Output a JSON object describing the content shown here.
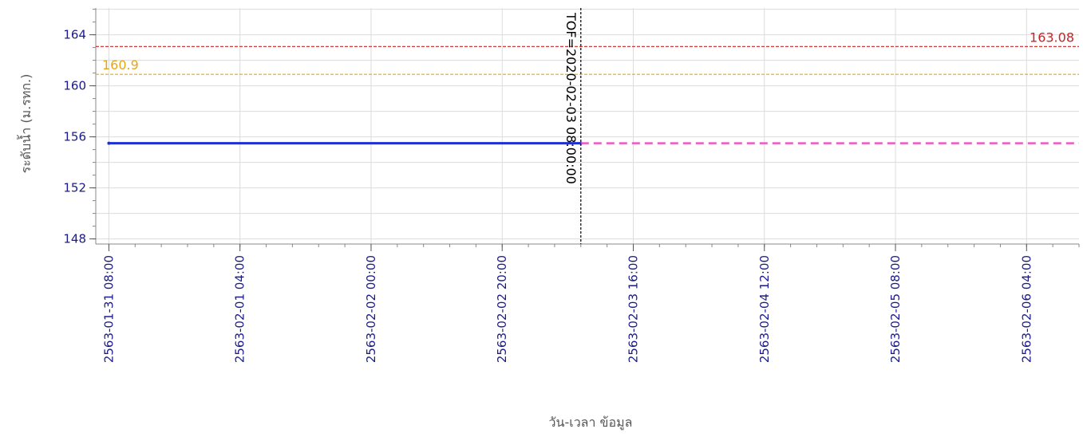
{
  "chart_data": {
    "type": "line",
    "ylabel": "ระดับน้ำ (ม.รทก.)",
    "xlabel": "วัน-เวลา ข้อมูล",
    "ylim": [
      147.6,
      166.1
    ],
    "y_ticks": [
      148,
      152,
      156,
      160,
      164
    ],
    "x_start": "2563-01-31 06:00",
    "x_end": "2563-02-06 12:00",
    "x_ticks": [
      "2563-01-31 08:00",
      "2563-02-01 04:00",
      "2563-02-02 00:00",
      "2563-02-02 20:00",
      "2563-02-03 16:00",
      "2563-02-04 12:00",
      "2563-02-05 08:00",
      "2563-02-06 04:00"
    ],
    "grid": true,
    "reference_lines": [
      {
        "value": 163.08,
        "label": "163.08",
        "color": "#cc2222",
        "label_position": "right"
      },
      {
        "value": 160.9,
        "label": "160.9",
        "color": "#e6a619",
        "label_position": "left"
      }
    ],
    "marker": {
      "x": "2563-02-03 08:00",
      "label": "TOF=2020-02-03 08:00:00",
      "color": "#000000"
    },
    "series": [
      {
        "style": "solid",
        "color": "#1f2fd6",
        "x": [
          "2563-01-31 08:00",
          "2563-02-03 08:00"
        ],
        "values": [
          155.5,
          155.5
        ]
      },
      {
        "style": "dashed",
        "color": "#ee55cc",
        "x": [
          "2563-02-03 08:00",
          "2563-02-06 12:00"
        ],
        "values": [
          155.5,
          155.5
        ]
      }
    ]
  }
}
